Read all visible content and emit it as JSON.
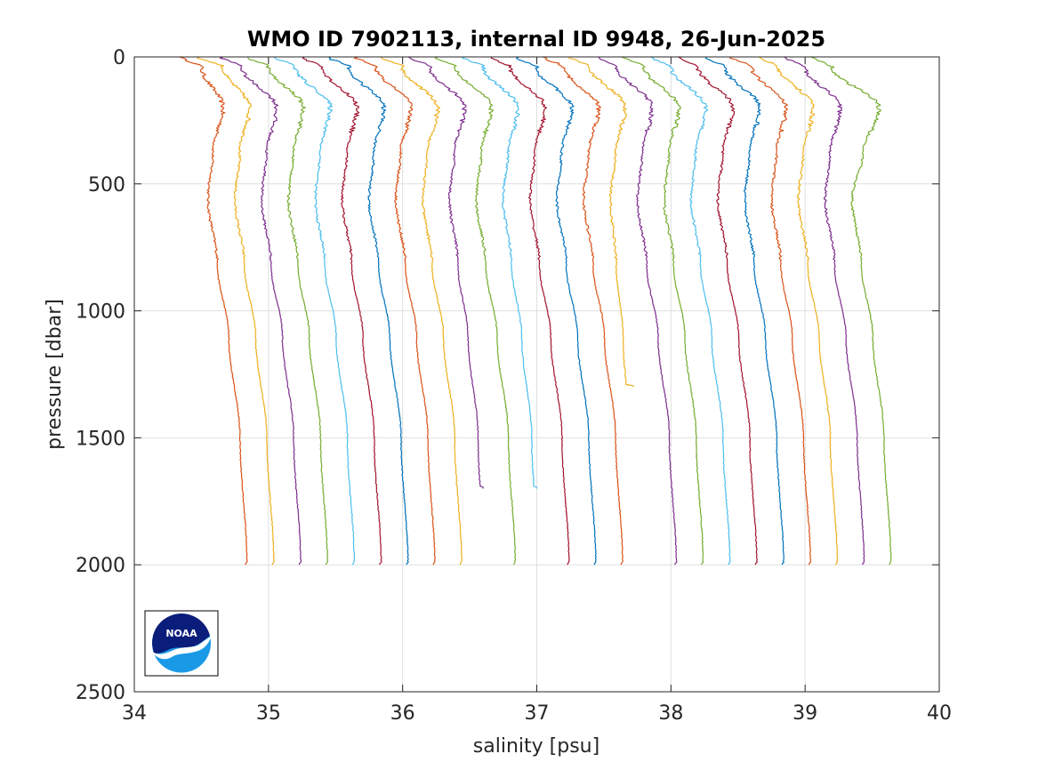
{
  "chart_data": {
    "type": "line",
    "title": "WMO ID 7902113, internal ID 9948, 26-Jun-2025",
    "xlabel": "salinity [psu]",
    "ylabel": "pressure [dbar]",
    "xlim": [
      34,
      40
    ],
    "ylim": [
      0,
      2500
    ],
    "y_reversed": true,
    "grid": true,
    "xticks": [
      34,
      35,
      36,
      37,
      38,
      39,
      40
    ],
    "yticks": [
      0,
      500,
      1000,
      1500,
      2000,
      2500
    ],
    "xtick_labels": [
      "34",
      "35",
      "36",
      "37",
      "38",
      "39",
      "40"
    ],
    "ytick_labels": [
      "0",
      "500",
      "1000",
      "1500",
      "2000",
      "2500"
    ],
    "logo": "noaa-logo",
    "series": [
      {
        "color": "#D95319",
        "surface": [
          34.35,
          34.5
        ],
        "mix": 34.66,
        "min": 34.55,
        "bottom": 34.83,
        "maxp": 2000
      },
      {
        "color": "#EDB120",
        "surface": [
          34.48,
          34.66
        ],
        "mix": 34.86,
        "min": 34.75,
        "bottom": 35.03,
        "maxp": 2000
      },
      {
        "color": "#7E2F8E",
        "surface": [
          34.65,
          34.8
        ],
        "mix": 35.06,
        "min": 34.95,
        "bottom": 35.23,
        "maxp": 2000
      },
      {
        "color": "#77AC30",
        "surface": [
          34.85,
          35.0
        ],
        "mix": 35.26,
        "min": 35.15,
        "bottom": 35.43,
        "maxp": 2000
      },
      {
        "color": "#4DBEEE",
        "surface": [
          35.05,
          35.2
        ],
        "mix": 35.46,
        "min": 35.35,
        "bottom": 35.63,
        "maxp": 2000
      },
      {
        "color": "#A2142F",
        "surface": [
          35.25,
          35.4
        ],
        "mix": 35.66,
        "min": 35.55,
        "bottom": 35.83,
        "maxp": 2000
      },
      {
        "color": "#0072BD",
        "surface": [
          35.45,
          35.6
        ],
        "mix": 35.86,
        "min": 35.75,
        "bottom": 36.03,
        "maxp": 2000
      },
      {
        "color": "#D95319",
        "surface": [
          35.65,
          35.8
        ],
        "mix": 36.06,
        "min": 35.95,
        "bottom": 36.23,
        "maxp": 2000
      },
      {
        "color": "#EDB120",
        "surface": [
          35.85,
          36.0
        ],
        "mix": 36.26,
        "min": 36.15,
        "bottom": 36.43,
        "maxp": 2000
      },
      {
        "color": "#7E2F8E",
        "surface": [
          36.05,
          36.2
        ],
        "mix": 36.46,
        "min": 36.35,
        "bottom": 36.6,
        "maxp": 1700
      },
      {
        "color": "#77AC30",
        "surface": [
          36.25,
          36.4
        ],
        "mix": 36.66,
        "min": 36.55,
        "bottom": 36.83,
        "maxp": 2000
      },
      {
        "color": "#4DBEEE",
        "surface": [
          36.45,
          36.6
        ],
        "mix": 36.86,
        "min": 36.75,
        "bottom": 37.0,
        "maxp": 1700
      },
      {
        "color": "#A2142F",
        "surface": [
          36.65,
          36.8
        ],
        "mix": 37.06,
        "min": 36.95,
        "bottom": 37.23,
        "maxp": 2000
      },
      {
        "color": "#0072BD",
        "surface": [
          36.85,
          37.0
        ],
        "mix": 37.26,
        "min": 37.15,
        "bottom": 37.43,
        "maxp": 2000
      },
      {
        "color": "#D95319",
        "surface": [
          37.05,
          37.2
        ],
        "mix": 37.46,
        "min": 37.35,
        "bottom": 37.63,
        "maxp": 2000
      },
      {
        "color": "#EDB120",
        "surface": [
          37.25,
          37.4
        ],
        "mix": 37.66,
        "min": 37.55,
        "bottom": 37.72,
        "maxp": 1300
      },
      {
        "color": "#7E2F8E",
        "surface": [
          37.45,
          37.6
        ],
        "mix": 37.86,
        "min": 37.75,
        "bottom": 38.03,
        "maxp": 2000
      },
      {
        "color": "#77AC30",
        "surface": [
          37.65,
          37.8
        ],
        "mix": 38.06,
        "min": 37.95,
        "bottom": 38.23,
        "maxp": 2000
      },
      {
        "color": "#4DBEEE",
        "surface": [
          37.85,
          38.0
        ],
        "mix": 38.26,
        "min": 38.15,
        "bottom": 38.43,
        "maxp": 2000
      },
      {
        "color": "#A2142F",
        "surface": [
          38.05,
          38.2
        ],
        "mix": 38.46,
        "min": 38.35,
        "bottom": 38.63,
        "maxp": 2000
      },
      {
        "color": "#0072BD",
        "surface": [
          38.25,
          38.4
        ],
        "mix": 38.66,
        "min": 38.55,
        "bottom": 38.83,
        "maxp": 2000
      },
      {
        "color": "#D95319",
        "surface": [
          38.45,
          38.6
        ],
        "mix": 38.86,
        "min": 38.75,
        "bottom": 39.03,
        "maxp": 2000
      },
      {
        "color": "#EDB120",
        "surface": [
          38.65,
          38.8
        ],
        "mix": 39.06,
        "min": 38.95,
        "bottom": 39.23,
        "maxp": 2000
      },
      {
        "color": "#7E2F8E",
        "surface": [
          38.85,
          39.0
        ],
        "mix": 39.26,
        "min": 39.15,
        "bottom": 39.43,
        "maxp": 2000
      },
      {
        "color": "#77AC30",
        "surface": [
          39.05,
          39.2
        ],
        "mix": 39.55,
        "min": 39.35,
        "bottom": 39.63,
        "maxp": 2000
      }
    ]
  }
}
